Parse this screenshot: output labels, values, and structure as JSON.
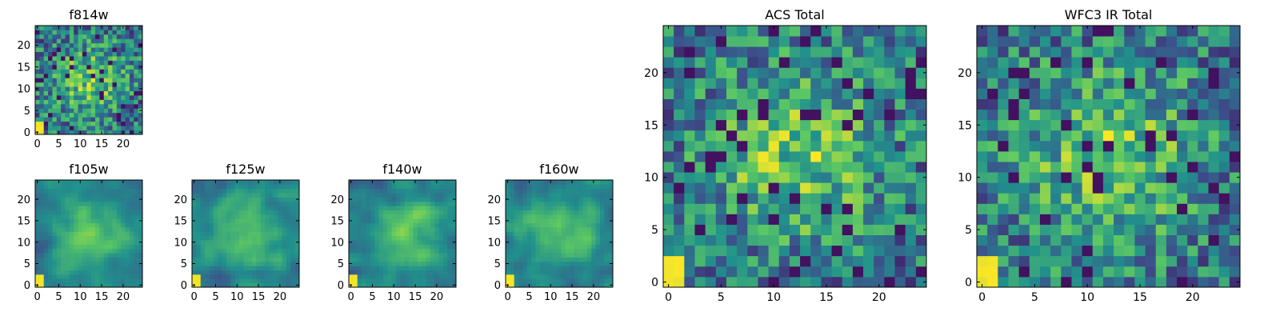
{
  "chart_data": [
    {
      "type": "heatmap",
      "title": "f814w",
      "grid": 25,
      "xlim": [
        -0.5,
        24.5
      ],
      "ylim": [
        -0.5,
        24.5
      ],
      "xticks": [
        0,
        5,
        10,
        15,
        20
      ],
      "yticks": [
        0,
        5,
        10,
        15,
        20
      ],
      "pattern": "noisy-center",
      "seed": 814
    },
    {
      "type": "heatmap",
      "title": "f105w",
      "grid": 25,
      "xlim": [
        -0.5,
        24.5
      ],
      "ylim": [
        -0.5,
        24.5
      ],
      "xticks": [
        0,
        5,
        10,
        15,
        20
      ],
      "yticks": [
        0,
        5,
        10,
        15,
        20
      ],
      "pattern": "smooth-center",
      "seed": 105
    },
    {
      "type": "heatmap",
      "title": "f125w",
      "grid": 25,
      "xlim": [
        -0.5,
        24.5
      ],
      "ylim": [
        -0.5,
        24.5
      ],
      "xticks": [
        0,
        5,
        10,
        15,
        20
      ],
      "yticks": [
        0,
        5,
        10,
        15,
        20
      ],
      "pattern": "smooth-center",
      "seed": 125
    },
    {
      "type": "heatmap",
      "title": "f140w",
      "grid": 25,
      "xlim": [
        -0.5,
        24.5
      ],
      "ylim": [
        -0.5,
        24.5
      ],
      "xticks": [
        0,
        5,
        10,
        15,
        20
      ],
      "yticks": [
        0,
        5,
        10,
        15,
        20
      ],
      "pattern": "smooth-center",
      "seed": 140
    },
    {
      "type": "heatmap",
      "title": "f160w",
      "grid": 25,
      "xlim": [
        -0.5,
        24.5
      ],
      "ylim": [
        -0.5,
        24.5
      ],
      "xticks": [
        0,
        5,
        10,
        15,
        20
      ],
      "yticks": [
        0,
        5,
        10,
        15,
        20
      ],
      "pattern": "smooth-center",
      "seed": 160
    },
    {
      "type": "heatmap",
      "title": "ACS Total",
      "grid": 25,
      "xlim": [
        -0.5,
        24.5
      ],
      "ylim": [
        -0.5,
        24.5
      ],
      "xticks": [
        0,
        5,
        10,
        15,
        20
      ],
      "yticks": [
        0,
        5,
        10,
        15,
        20
      ],
      "pattern": "noisy-center",
      "seed": 1001
    },
    {
      "type": "heatmap",
      "title": "WFC3 IR Total",
      "grid": 25,
      "xlim": [
        -0.5,
        24.5
      ],
      "ylim": [
        -0.5,
        24.5
      ],
      "xticks": [
        0,
        5,
        10,
        15,
        20
      ],
      "yticks": [
        0,
        5,
        10,
        15,
        20
      ],
      "pattern": "noisy-center",
      "seed": 2002
    }
  ],
  "colormap": [
    "#440154",
    "#3b528b",
    "#21918c",
    "#5ec962",
    "#fde725"
  ]
}
